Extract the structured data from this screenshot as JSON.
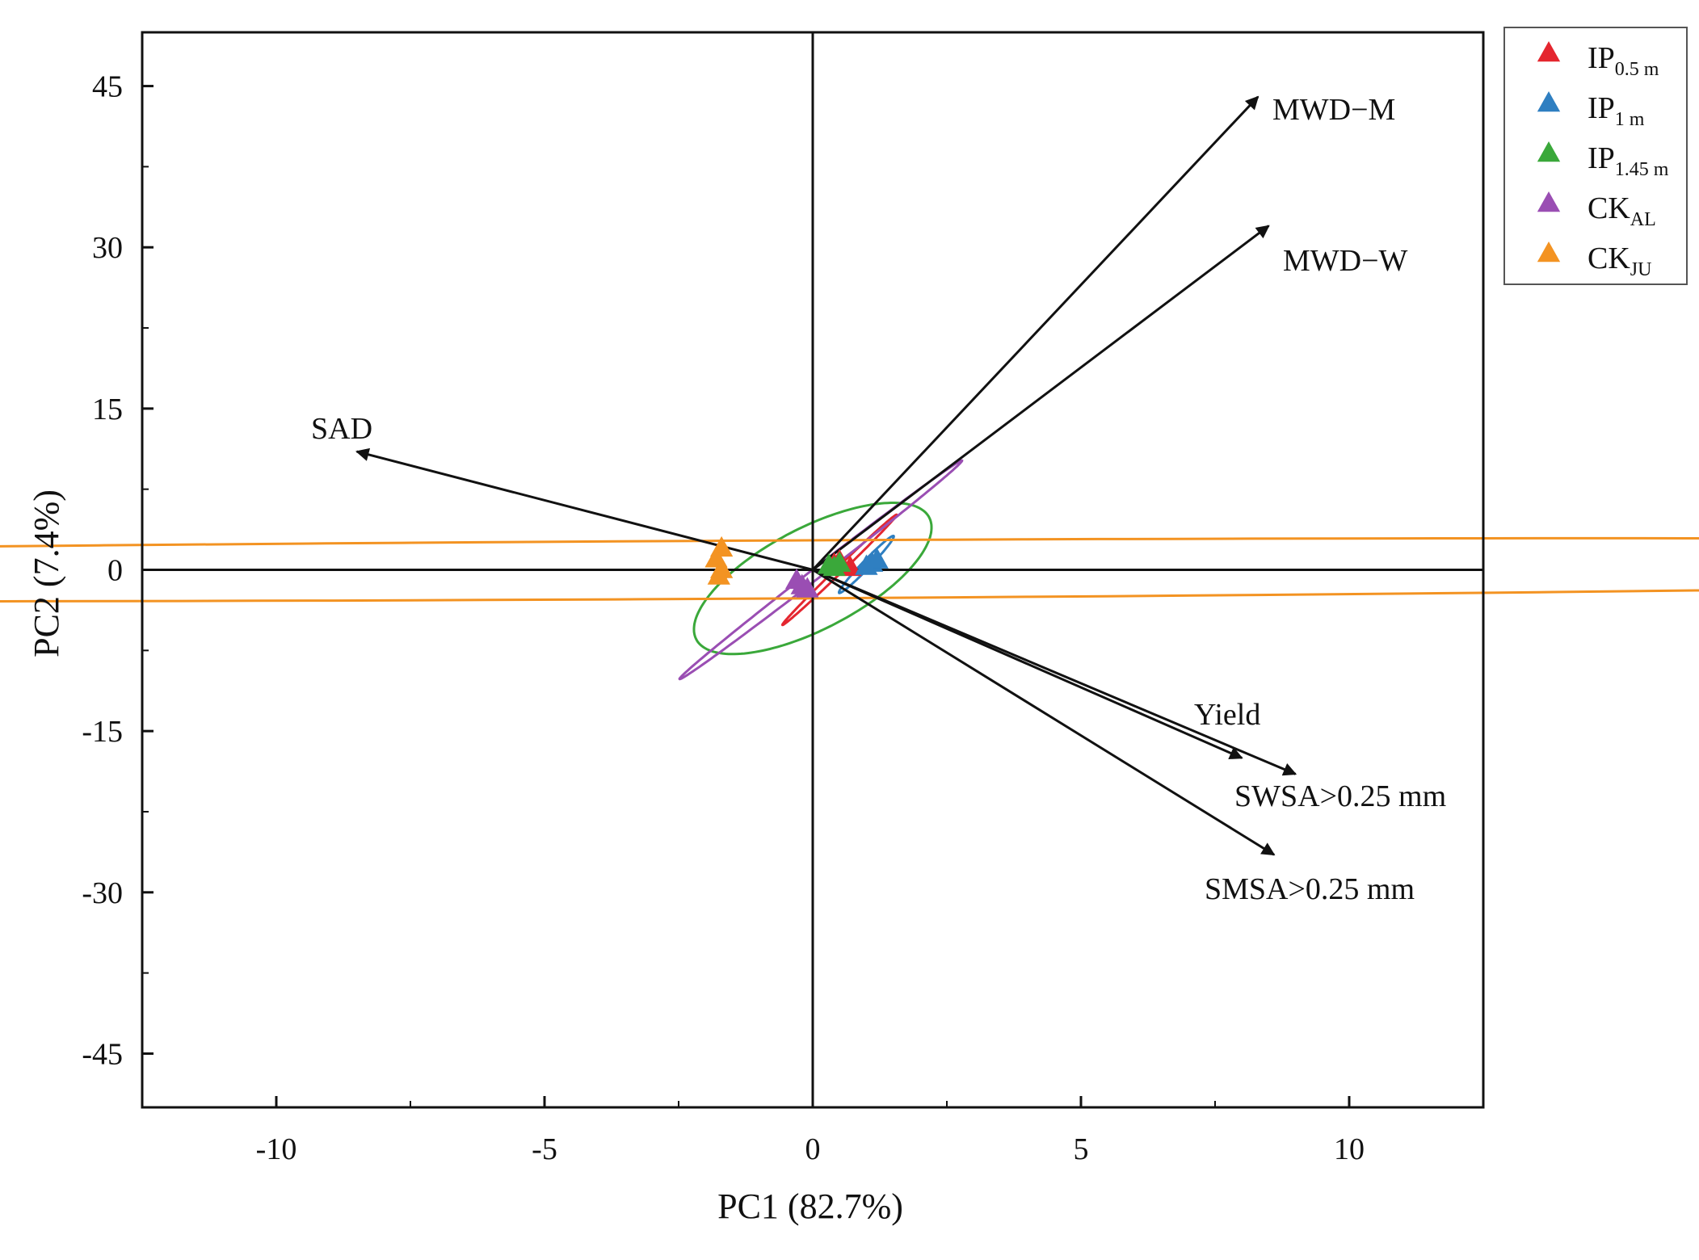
{
  "chart_data": {
    "type": "scatter",
    "subtype": "pca-biplot",
    "xlabel": "PC1 (82.7%)",
    "ylabel": "PC2 (7.4%)",
    "xlim": [
      -12.5,
      12.5
    ],
    "ylim": [
      -50,
      50
    ],
    "xticks": [
      -10,
      -5,
      0,
      5,
      10
    ],
    "xtick_labels": [
      "-10",
      "-5",
      "0",
      "5",
      "10"
    ],
    "yticks": [
      -45,
      -30,
      -15,
      0,
      15,
      30,
      45
    ],
    "ytick_labels": [
      "-45",
      "-30",
      "-15",
      "0",
      "15",
      "30",
      "45"
    ],
    "legend_position": "outside-top-right",
    "groups": [
      {
        "name": "IP",
        "subscript": "0.5 m",
        "color": "#e4262f",
        "points": [
          [
            0.4,
            0.5
          ],
          [
            0.7,
            0.2
          ],
          [
            0.5,
            0.8
          ]
        ],
        "ellipse": {
          "center": [
            0.5,
            0.0
          ],
          "semi_major": 5.24,
          "semi_minor": 0.08,
          "angle_deg": 78.3
        }
      },
      {
        "name": "IP",
        "subscript": "1 m",
        "color": "#2f7fc1",
        "points": [
          [
            1.1,
            0.6
          ],
          [
            1.2,
            0.9
          ],
          [
            1.0,
            0.3
          ]
        ],
        "ellipse": {
          "center": [
            1.0,
            0.5
          ],
          "semi_major": 2.7,
          "semi_minor": 0.1,
          "angle_deg": 79.3
        }
      },
      {
        "name": "IP",
        "subscript": "1.45 m",
        "color": "#3aa83a",
        "points": [
          [
            0.3,
            0.4
          ],
          [
            0.5,
            0.6
          ],
          [
            0.4,
            0.2
          ]
        ],
        "ellipse": {
          "center": [
            0.0,
            -0.8
          ],
          "semi_major": 7.2,
          "semi_minor": 1.6,
          "angle_deg": 77.4
        }
      },
      {
        "name": "CK",
        "subscript": "AL",
        "color": "#9a4eb3",
        "points": [
          [
            -0.2,
            -1.5
          ],
          [
            -0.3,
            -1.0
          ],
          [
            -0.1,
            -1.8
          ]
        ],
        "ellipse": {
          "center": [
            0.15,
            0.0
          ],
          "semi_major": 10.5,
          "semi_minor": 0.15,
          "angle_deg": 75.5
        }
      },
      {
        "name": "CK",
        "subscript": "JU",
        "color": "#f39322",
        "points": [
          [
            -1.7,
            2.0
          ],
          [
            -1.8,
            1.0
          ],
          [
            -1.7,
            0.0
          ],
          [
            -1.75,
            -0.6
          ]
        ],
        "ellipse": {
          "center": [
            -1.8,
            0.0
          ],
          "semi_major": 41.5,
          "semi_minor": 2.7,
          "angle_deg": 1.6
        }
      }
    ],
    "loadings": [
      {
        "label": "MWD−M",
        "x": 8.3,
        "y": 44
      },
      {
        "label": "MWD−W",
        "x": 8.5,
        "y": 32
      },
      {
        "label": "SAD",
        "x": -8.5,
        "y": 11
      },
      {
        "label": "Yield",
        "x": 8.0,
        "y": -17.5
      },
      {
        "label": "SWSA>0.25 mm",
        "x": 9.0,
        "y": -19
      },
      {
        "label": "SMSA>0.25 mm",
        "x": 8.6,
        "y": -26.5
      }
    ]
  }
}
